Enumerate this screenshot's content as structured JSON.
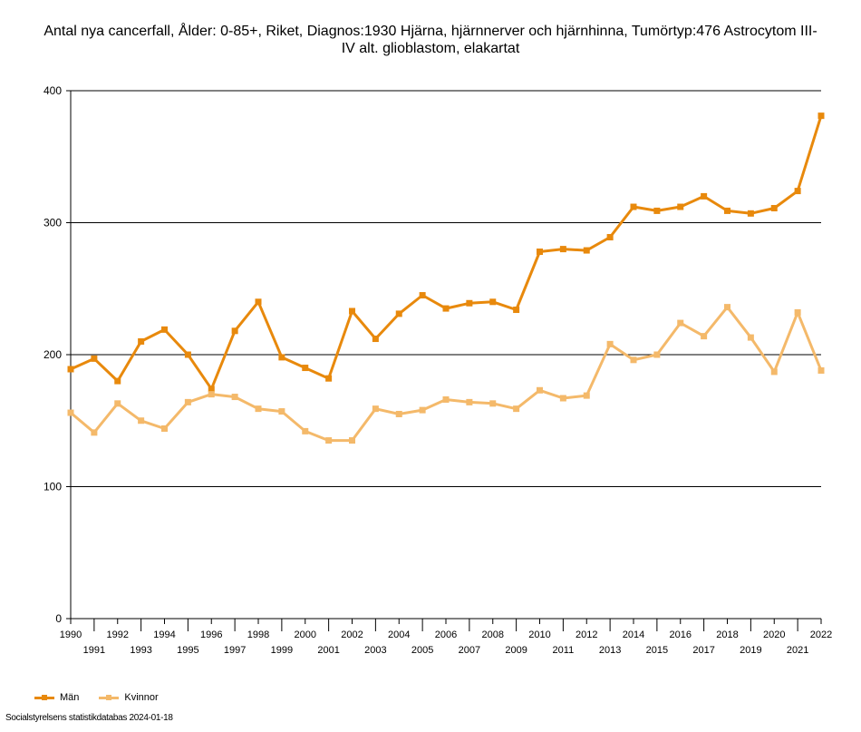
{
  "chart_data": {
    "type": "line",
    "title_lines": [
      "Antal nya cancerfall, Ålder: 0-85+, Riket, Diagnos:1930 Hjärna, hjärnnerver och hjärnhinna, Tumörtyp:476 Astrocytom III-",
      "IV alt. glioblastom, elakartat"
    ],
    "x": [
      1990,
      1991,
      1992,
      1993,
      1994,
      1995,
      1996,
      1997,
      1998,
      1999,
      2000,
      2001,
      2002,
      2003,
      2004,
      2005,
      2006,
      2007,
      2008,
      2009,
      2010,
      2011,
      2012,
      2013,
      2014,
      2015,
      2016,
      2017,
      2018,
      2019,
      2020,
      2021,
      2022
    ],
    "ylim": [
      0,
      400
    ],
    "yticks": [
      0,
      100,
      200,
      300,
      400
    ],
    "grid": true,
    "legend_position": "bottom-left",
    "series": [
      {
        "name": "Män",
        "color": "#e8890c",
        "values": [
          189,
          197,
          180,
          210,
          219,
          200,
          174,
          218,
          240,
          198,
          190,
          182,
          233,
          212,
          231,
          245,
          235,
          239,
          240,
          234,
          278,
          280,
          279,
          289,
          312,
          309,
          312,
          320,
          309,
          307,
          311,
          324,
          381
        ]
      },
      {
        "name": "Kvinnor",
        "color": "#f4b96a",
        "values": [
          156,
          141,
          163,
          150,
          144,
          164,
          170,
          168,
          159,
          157,
          142,
          135,
          135,
          159,
          155,
          158,
          166,
          164,
          163,
          159,
          173,
          167,
          169,
          208,
          196,
          200,
          224,
          214,
          236,
          213,
          187,
          232,
          188
        ]
      }
    ]
  },
  "footer": {
    "source": "Socialstyrelsens statistikdatabas 2024-01-18"
  }
}
